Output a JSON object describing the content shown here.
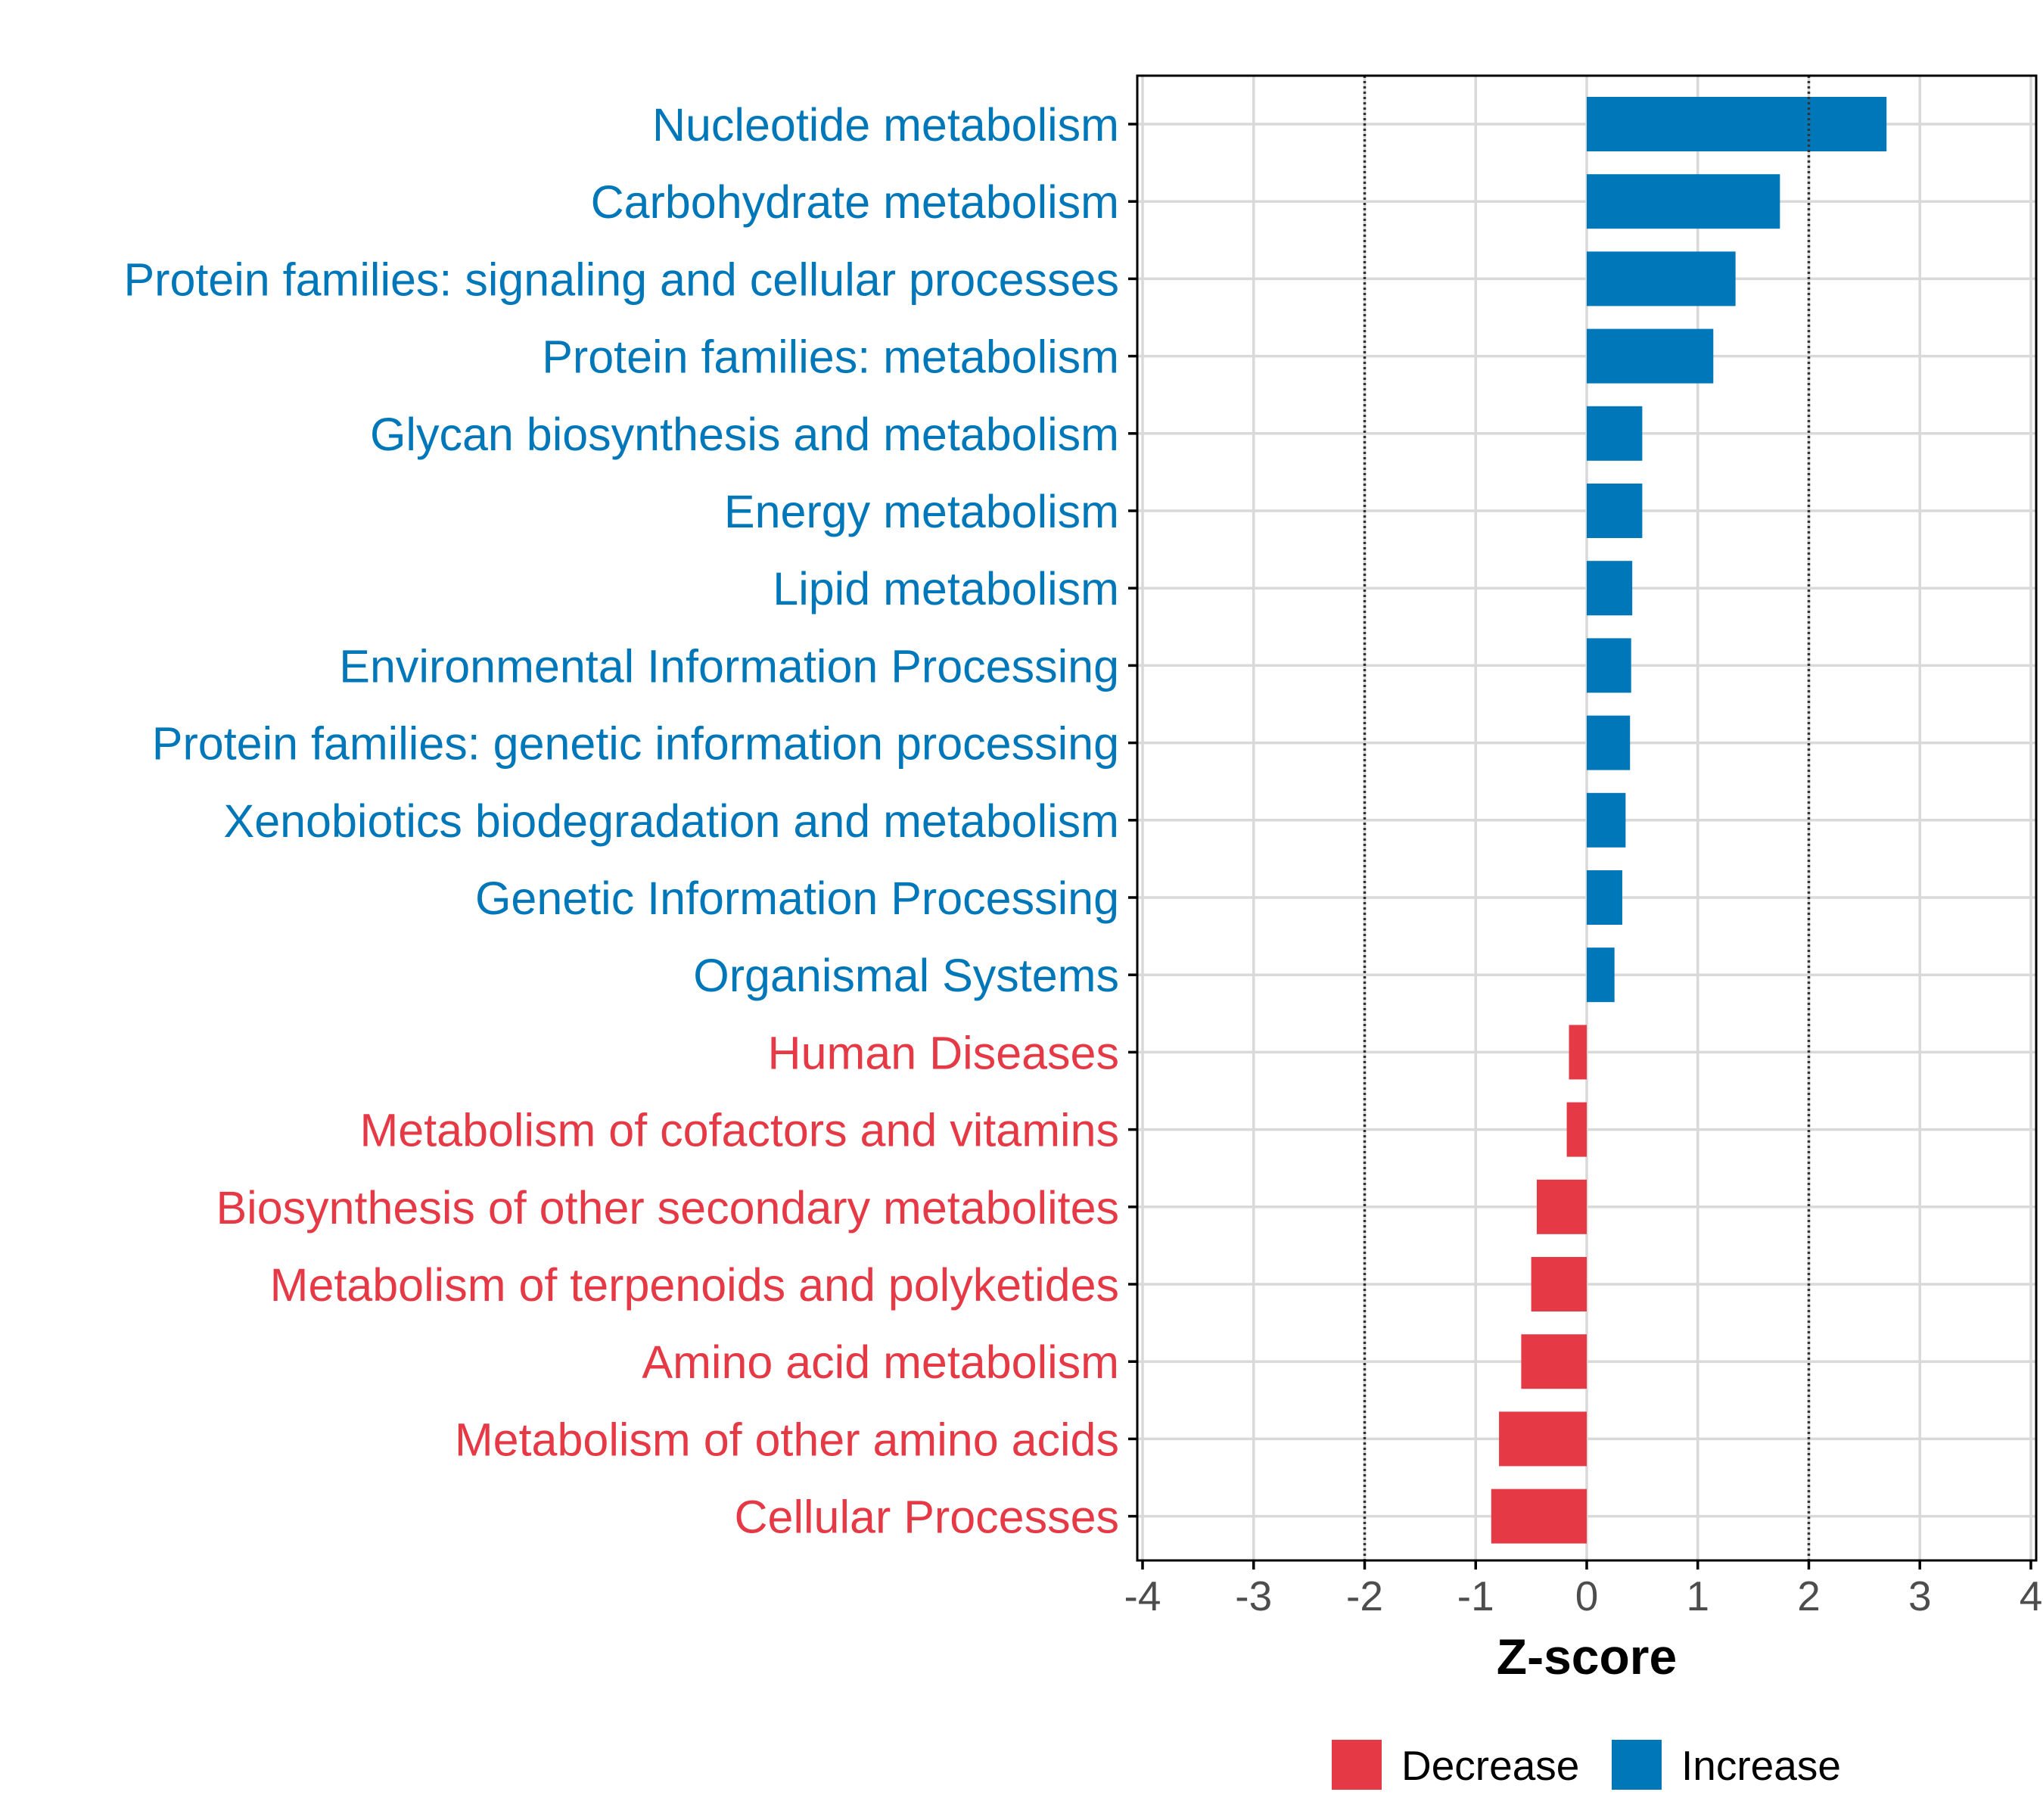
{
  "colors": {
    "increase": "#0077B8",
    "decrease": "#E63946",
    "grid": "#D9D9D9",
    "axis": "#000000",
    "threshold_line": "#333333",
    "tick_text": "#4D4D4D"
  },
  "chart_data": {
    "type": "bar",
    "orientation": "horizontal",
    "title": "",
    "xlabel": "Z-score",
    "ylabel": "",
    "xlim": [
      -4,
      4
    ],
    "x_ticks": [
      -4,
      -3,
      -2,
      -1,
      0,
      1,
      2,
      3,
      4
    ],
    "x_tick_labels": [
      "-4",
      "-3",
      "-2",
      "-1",
      "0",
      "1",
      "2",
      "3",
      "4"
    ],
    "grid": true,
    "reference_lines": [
      -2,
      2
    ],
    "legend": {
      "position": "bottom",
      "entries": [
        "Decrease",
        "Increase"
      ]
    },
    "categories": [
      "Nucleotide metabolism",
      "Carbohydrate metabolism",
      "Protein families: signaling and cellular processes",
      "Protein families: metabolism",
      "Glycan biosynthesis and metabolism",
      "Energy metabolism",
      "Lipid metabolism",
      "Environmental Information Processing",
      "Protein families: genetic information processing",
      "Xenobiotics biodegradation and metabolism",
      "Genetic Information Processing",
      "Organismal Systems",
      "Human Diseases",
      "Metabolism of cofactors and vitamins",
      "Biosynthesis of other secondary metabolites",
      "Metabolism of terpenoids and polyketides",
      "Amino acid metabolism",
      "Metabolism of other amino acids",
      "Cellular Processes"
    ],
    "values": [
      2.7,
      1.74,
      1.34,
      1.14,
      0.5,
      0.5,
      0.41,
      0.4,
      0.39,
      0.35,
      0.32,
      0.25,
      -0.16,
      -0.18,
      -0.45,
      -0.5,
      -0.59,
      -0.79,
      -0.86
    ],
    "groups": [
      "Increase",
      "Increase",
      "Increase",
      "Increase",
      "Increase",
      "Increase",
      "Increase",
      "Increase",
      "Increase",
      "Increase",
      "Increase",
      "Increase",
      "Decrease",
      "Decrease",
      "Decrease",
      "Decrease",
      "Decrease",
      "Decrease",
      "Decrease"
    ]
  }
}
